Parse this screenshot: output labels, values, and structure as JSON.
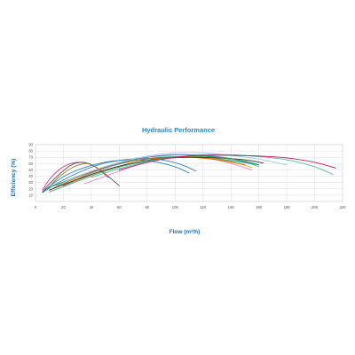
{
  "chart_data": {
    "type": "line",
    "title": "Hydraulic Performance",
    "xlabel": "Flow (m³/h)",
    "ylabel": "Efficiency (%)",
    "xlim": [
      0,
      220
    ],
    "ylim": [
      0,
      90
    ],
    "xticks": [
      0,
      20,
      40,
      60,
      80,
      100,
      120,
      140,
      160,
      180,
      200,
      220
    ],
    "yticks": [
      10,
      20,
      30,
      40,
      50,
      60,
      70,
      80,
      90
    ],
    "grid": true,
    "series": [
      {
        "color": "#e7298a",
        "x": [
          5,
          10,
          18,
          25,
          30,
          36,
          42,
          48,
          52
        ],
        "y": [
          18,
          35,
          52,
          60,
          62,
          61,
          56,
          46,
          38
        ]
      },
      {
        "color": "#4d4d4d",
        "x": [
          5,
          10,
          18,
          25,
          32,
          38,
          45,
          52,
          60
        ],
        "y": [
          15,
          28,
          45,
          57,
          62,
          60,
          52,
          40,
          25
        ]
      },
      {
        "color": "#a6761d",
        "x": [
          8,
          15,
          25,
          35,
          40,
          45,
          50
        ],
        "y": [
          18,
          35,
          52,
          60,
          58,
          52,
          42
        ]
      },
      {
        "color": "#2c7fb8",
        "x": [
          5,
          15,
          25,
          40,
          55,
          70,
          85,
          100,
          110
        ],
        "y": [
          15,
          32,
          45,
          57,
          64,
          66,
          63,
          55,
          45
        ]
      },
      {
        "color": "#377eb8",
        "x": [
          5,
          15,
          30,
          45,
          60,
          75,
          90,
          105,
          115
        ],
        "y": [
          14,
          28,
          45,
          58,
          65,
          68,
          66,
          58,
          48
        ]
      },
      {
        "color": "#e78ac3",
        "x": [
          35,
          50,
          65,
          80,
          95,
          110,
          125,
          140,
          155
        ],
        "y": [
          28,
          40,
          52,
          62,
          68,
          70,
          68,
          60,
          50
        ]
      },
      {
        "color": "#66c2a5",
        "x": [
          15,
          30,
          50,
          70,
          90,
          110,
          130,
          150,
          160
        ],
        "y": [
          25,
          40,
          55,
          66,
          72,
          74,
          70,
          62,
          55
        ]
      },
      {
        "color": "#1b9e77",
        "x": [
          10,
          25,
          45,
          65,
          85,
          105,
          125,
          145,
          160
        ],
        "y": [
          22,
          35,
          50,
          62,
          69,
          71,
          69,
          63,
          58
        ]
      },
      {
        "color": "#e6ab02",
        "x": [
          20,
          40,
          60,
          80,
          100,
          120,
          140,
          155
        ],
        "y": [
          25,
          42,
          56,
          65,
          70,
          70,
          63,
          54
        ]
      },
      {
        "color": "#d95f02",
        "x": [
          10,
          30,
          50,
          70,
          90,
          110,
          130,
          150
        ],
        "y": [
          18,
          38,
          54,
          64,
          69,
          70,
          66,
          58
        ]
      },
      {
        "color": "#7570b3",
        "x": [
          20,
          40,
          60,
          80,
          100,
          120,
          140,
          155
        ],
        "y": [
          25,
          45,
          60,
          70,
          74,
          73,
          68,
          60
        ]
      },
      {
        "color": "#303030",
        "x": [
          10,
          30,
          50,
          70,
          90,
          110,
          130,
          150,
          163
        ],
        "y": [
          18,
          35,
          50,
          61,
          68,
          70,
          69,
          66,
          61
        ]
      },
      {
        "color": "#2ca25f",
        "x": [
          10,
          30,
          50,
          70,
          90,
          110,
          130,
          150,
          160
        ],
        "y": [
          15,
          32,
          48,
          60,
          68,
          72,
          70,
          64,
          58
        ]
      },
      {
        "color": "#9ecae1",
        "x": [
          20,
          40,
          60,
          80,
          100,
          120,
          140,
          160,
          180
        ],
        "y": [
          30,
          48,
          62,
          72,
          77,
          77,
          73,
          67,
          58
        ]
      },
      {
        "color": "#5ab4ac",
        "x": [
          40,
          60,
          80,
          100,
          120,
          140,
          160,
          180,
          200,
          213
        ],
        "y": [
          38,
          52,
          63,
          70,
          74,
          74,
          71,
          66,
          55,
          43
        ]
      },
      {
        "color": "#c2185b",
        "x": [
          60,
          80,
          100,
          120,
          140,
          160,
          180,
          200,
          215
        ],
        "y": [
          50,
          62,
          70,
          73,
          73,
          72,
          69,
          62,
          53
        ]
      }
    ]
  }
}
